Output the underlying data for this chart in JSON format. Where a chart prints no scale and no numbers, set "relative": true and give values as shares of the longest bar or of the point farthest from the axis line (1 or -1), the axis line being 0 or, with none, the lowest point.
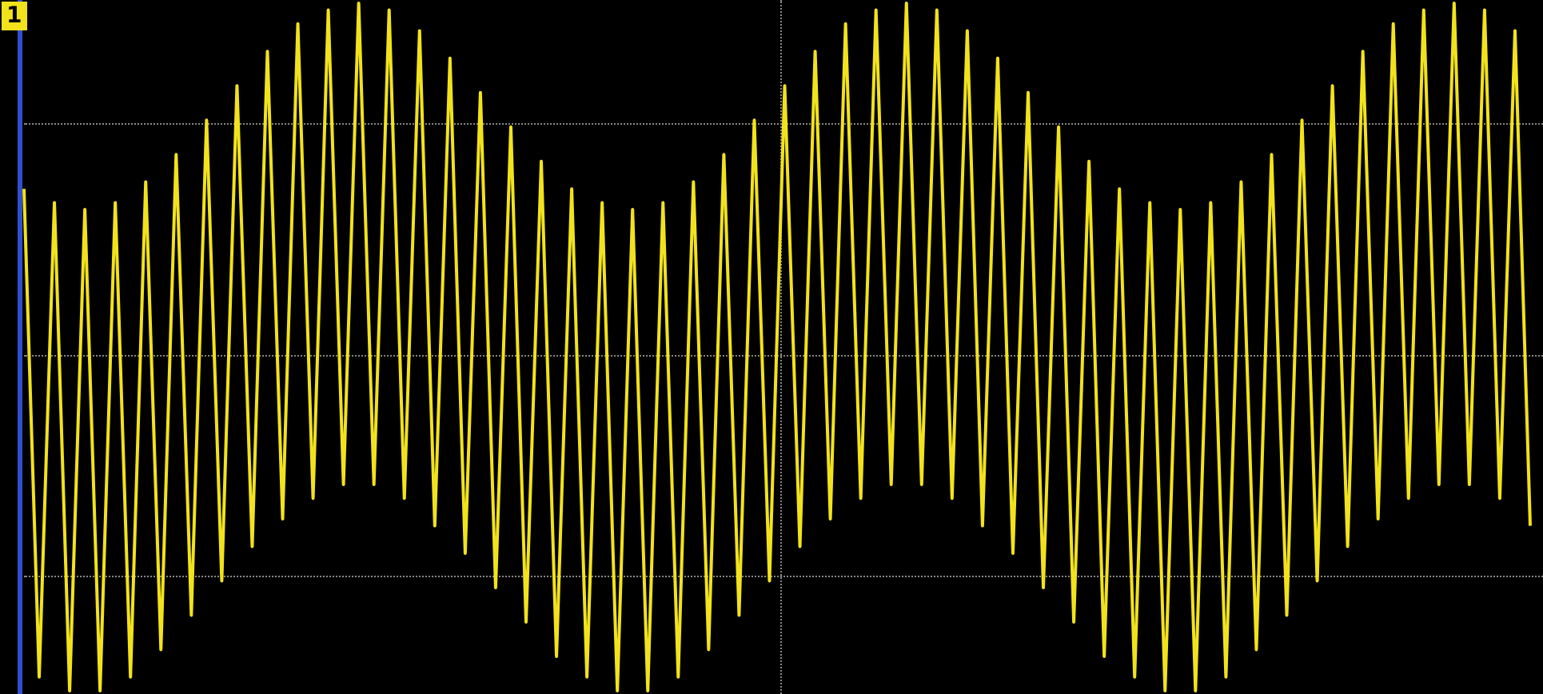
{
  "chart_data": {
    "type": "line",
    "relative": true,
    "legend": false,
    "marker": "none",
    "line_style": "solid",
    "annotations": [
      "1"
    ],
    "categories": [
      null,
      null,
      null,
      null,
      null,
      null,
      null,
      null,
      null,
      null,
      null,
      null,
      null,
      null,
      null,
      null,
      null,
      null,
      null,
      null,
      null,
      null,
      null,
      null,
      null,
      null,
      null,
      null,
      null,
      null,
      null,
      null,
      null,
      null,
      null,
      null,
      null,
      null,
      null,
      null,
      null,
      null,
      null,
      null,
      null,
      null,
      null,
      null,
      null,
      null,
      null,
      null,
      null,
      null,
      null,
      null,
      null,
      null,
      null,
      null,
      null,
      null,
      null,
      null,
      null,
      null,
      null,
      null,
      null,
      null,
      null,
      null,
      null,
      null,
      null,
      null,
      null,
      null,
      null,
      null,
      null,
      null,
      null,
      null,
      null,
      null,
      null,
      null,
      null,
      null,
      null,
      null,
      null,
      null,
      null,
      null,
      null,
      null,
      null,
      null
    ],
    "series": [
      {
        "color": "#f2e21c",
        "values": [
          0.73,
          0.02,
          0.71,
          0.0,
          0.7,
          0.0,
          0.71,
          0.02,
          0.74,
          0.06,
          0.78,
          0.11,
          0.83,
          0.16,
          0.88,
          0.21,
          0.93,
          0.25,
          0.97,
          0.28,
          0.99,
          0.3,
          1.0,
          0.3,
          0.99,
          0.28,
          0.96,
          0.24,
          0.92,
          0.2,
          0.87,
          0.15,
          0.82,
          0.1,
          0.77,
          0.05,
          0.73,
          0.02,
          0.71,
          0.0,
          0.7,
          0.0,
          0.71,
          0.02,
          0.74,
          0.06,
          0.78,
          0.11,
          0.83,
          0.16,
          0.88,
          0.21,
          0.93,
          0.25,
          0.97,
          0.28,
          0.99,
          0.3,
          1.0,
          0.3,
          0.99,
          0.28,
          0.96,
          0.24,
          0.92,
          0.2,
          0.87,
          0.15,
          0.82,
          0.1,
          0.77,
          0.05,
          0.73,
          0.02,
          0.71,
          0.0,
          0.7,
          0.0,
          0.71,
          0.02,
          0.74,
          0.06,
          0.78,
          0.11,
          0.83,
          0.16,
          0.88,
          0.21,
          0.93,
          0.25,
          0.97,
          0.28,
          0.99,
          0.3,
          1.0,
          0.3,
          0.99,
          0.28,
          0.96,
          0.24
        ]
      }
    ]
  }
}
